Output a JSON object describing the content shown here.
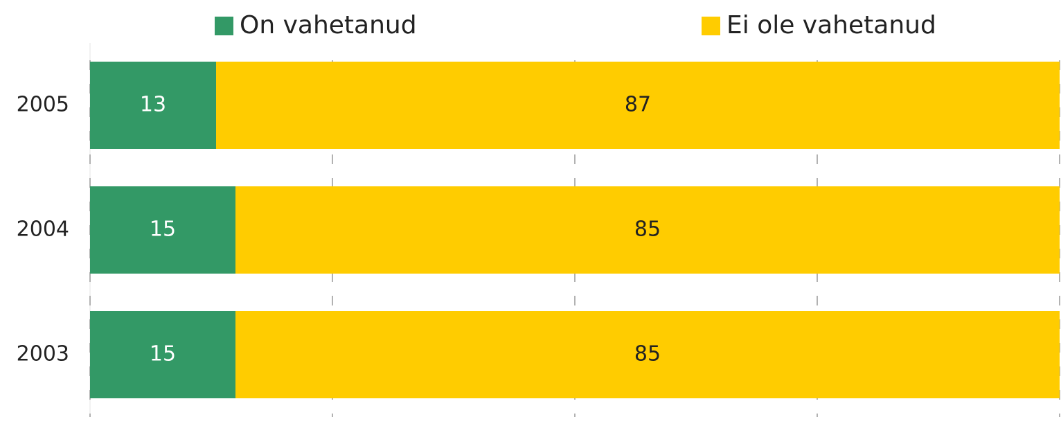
{
  "chart_data": {
    "type": "stacked_barh",
    "categories": [
      "2005",
      "2004",
      "2003"
    ],
    "series": [
      {
        "name": "On vahetanud",
        "color": "#339966",
        "values": [
          13,
          15,
          15
        ]
      },
      {
        "name": "Ei ole vahetanud",
        "color": "#ffcc00",
        "values": [
          87,
          85,
          85
        ]
      }
    ],
    "xlim": [
      0,
      100
    ],
    "xticks": [
      0,
      25,
      50,
      75,
      100
    ],
    "grid": true,
    "legend": "top"
  }
}
